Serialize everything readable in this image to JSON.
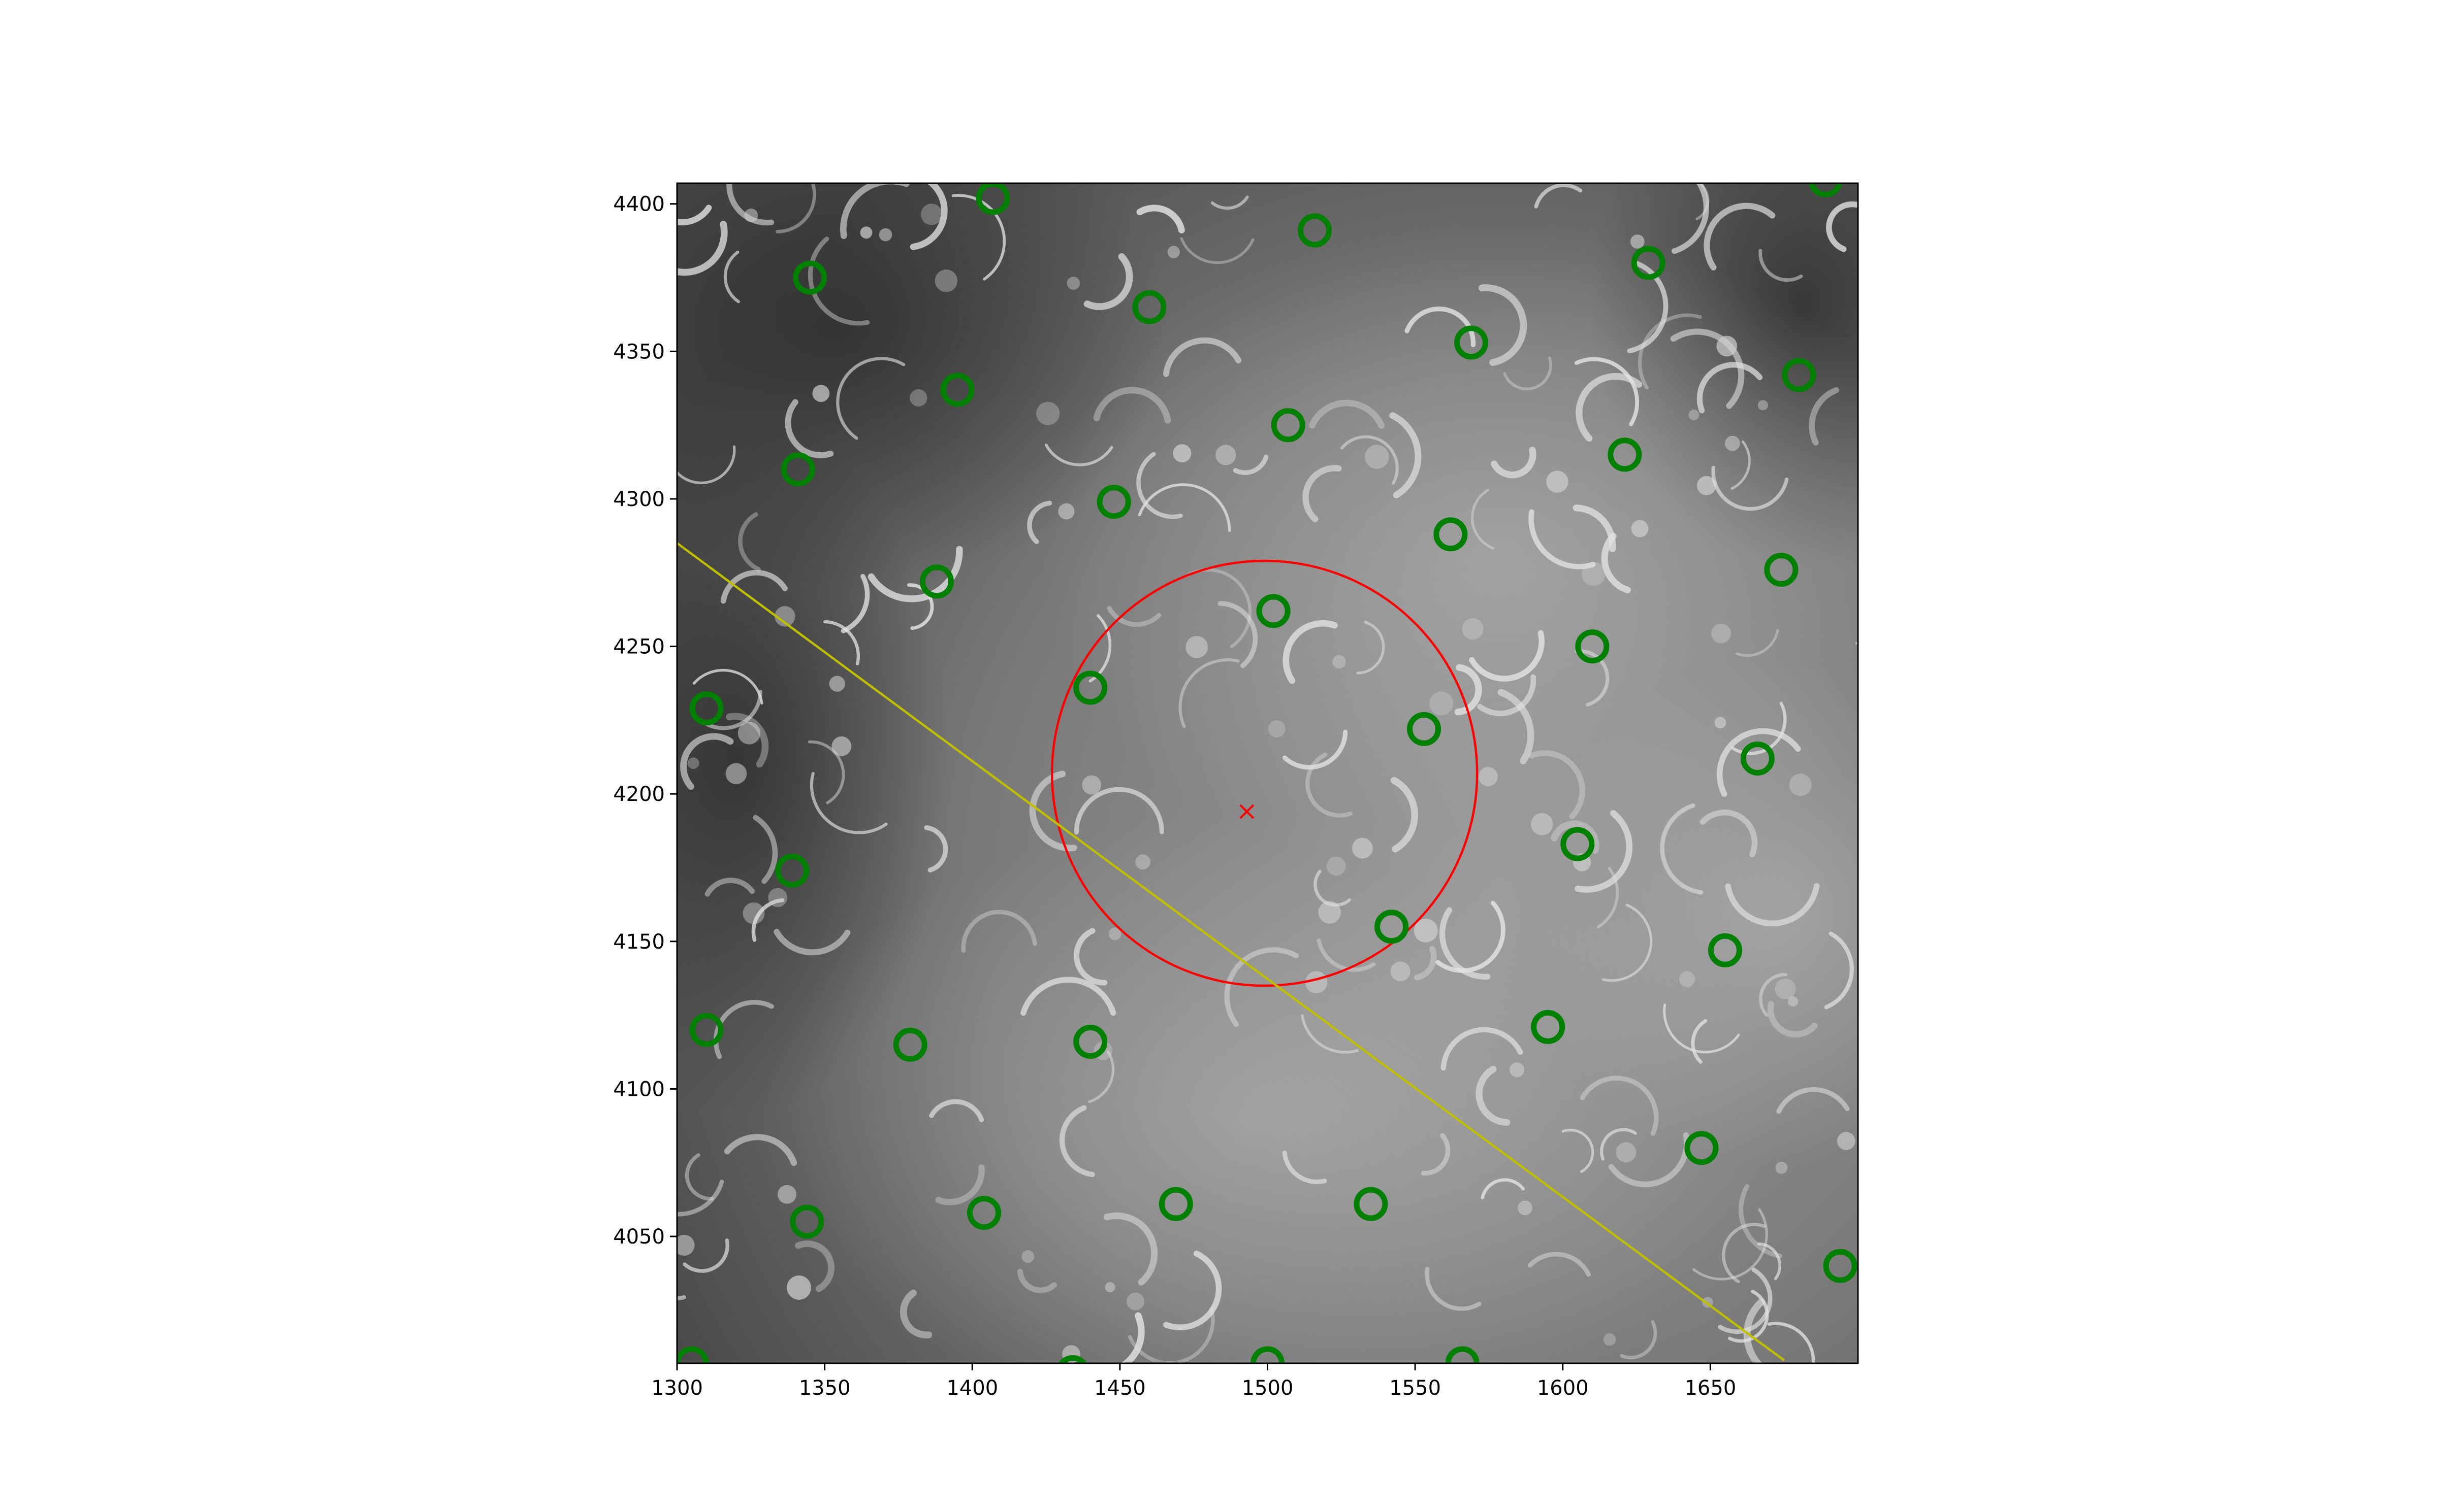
{
  "chart_data": {
    "type": "scatter",
    "title": "",
    "xlabel": "",
    "ylabel": "",
    "xlim": [
      1300,
      1700
    ],
    "ylim": [
      4007,
      4407
    ],
    "x_ticks": [
      1300,
      1350,
      1400,
      1450,
      1500,
      1550,
      1600,
      1650
    ],
    "y_ticks": [
      4050,
      4100,
      4150,
      4200,
      4250,
      4300,
      4350,
      4400
    ],
    "grid": false,
    "legend": "none",
    "background": "grayscale microscopy image",
    "series": [
      {
        "marker": "open circle",
        "color": "#008000",
        "points": [
          [
            1407,
            4402
          ],
          [
            1689,
            4408
          ],
          [
            1516,
            4391
          ],
          [
            1345,
            4375
          ],
          [
            1629,
            4380
          ],
          [
            1460,
            4365
          ],
          [
            1569,
            4353
          ],
          [
            1395,
            4337
          ],
          [
            1680,
            4342
          ],
          [
            1507,
            4325
          ],
          [
            1341,
            4310
          ],
          [
            1621,
            4315
          ],
          [
            1448,
            4299
          ],
          [
            1562,
            4288
          ],
          [
            1388,
            4272
          ],
          [
            1674,
            4276
          ],
          [
            1502,
            4262
          ],
          [
            1610,
            4250
          ],
          [
            1440,
            4236
          ],
          [
            1553,
            4222
          ],
          [
            1310,
            4229
          ],
          [
            1666,
            4212
          ],
          [
            1605,
            4183
          ],
          [
            1339,
            4174
          ],
          [
            1542,
            4155
          ],
          [
            1655,
            4147
          ],
          [
            1310,
            4120
          ],
          [
            1595,
            4121
          ],
          [
            1379,
            4115
          ],
          [
            1440,
            4116
          ],
          [
            1647,
            4080
          ],
          [
            1469,
            4061
          ],
          [
            1535,
            4061
          ],
          [
            1344,
            4055
          ],
          [
            1404,
            4058
          ],
          [
            1694,
            4040
          ],
          [
            1305,
            4007
          ],
          [
            1500,
            4007
          ],
          [
            1566,
            4007
          ],
          [
            1434,
            4004
          ]
        ]
      },
      {
        "marker": "x",
        "color": "#ff0000",
        "points": [
          [
            1493,
            4194
          ]
        ]
      }
    ],
    "overlays": [
      {
        "shape": "circle",
        "color": "#ff0000",
        "center": [
          1499,
          4207
        ],
        "radius": 72
      },
      {
        "shape": "line",
        "color": "#bfbf00",
        "from": [
          1300,
          4285
        ],
        "to": [
          1675,
          4008
        ]
      }
    ]
  }
}
